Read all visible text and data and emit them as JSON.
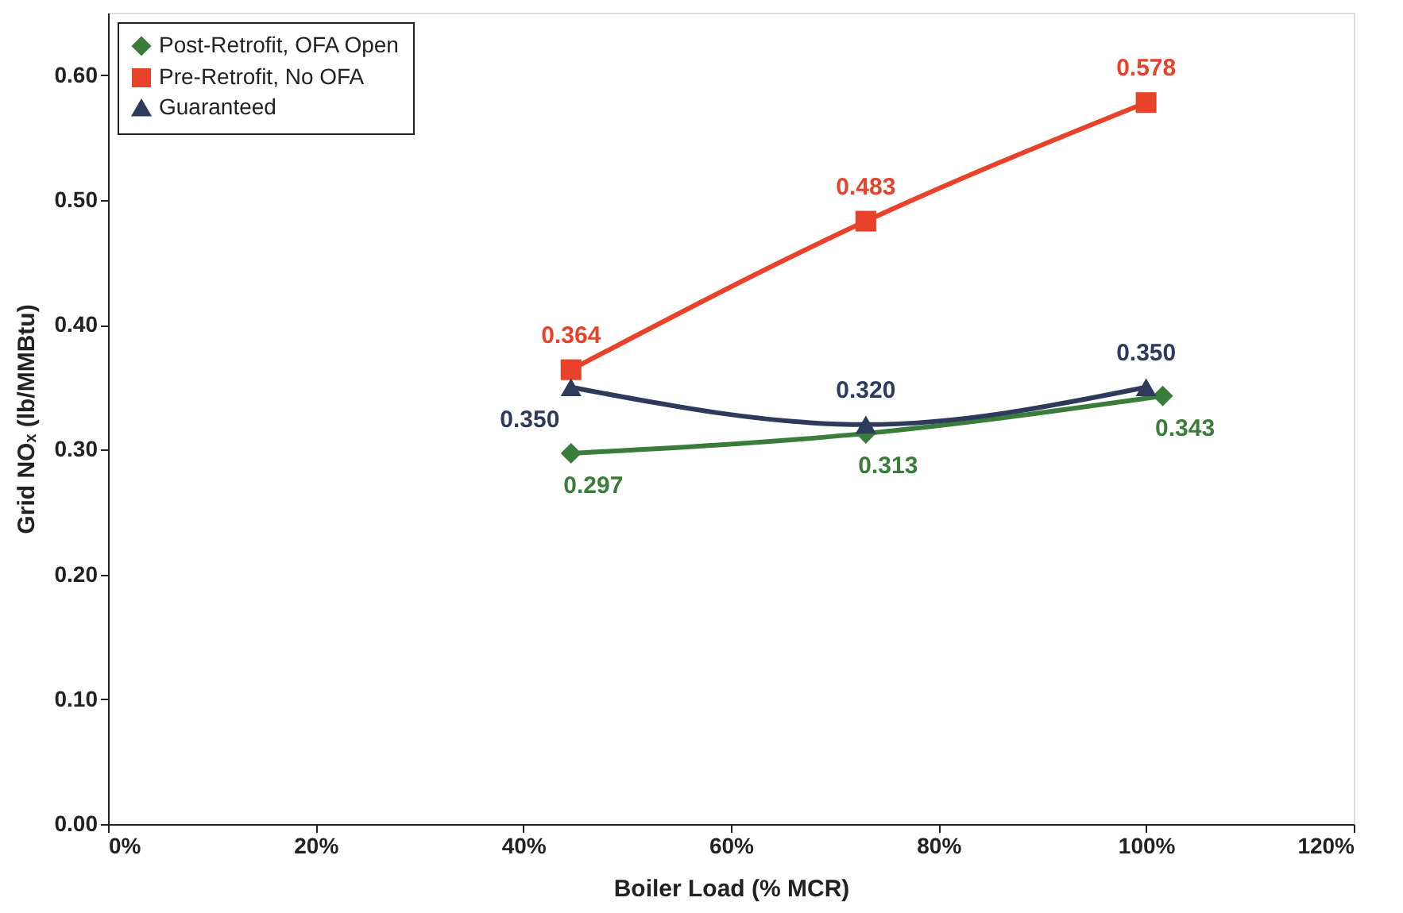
{
  "chart_data": {
    "type": "line",
    "xlabel": "Boiler Load (% MCR)",
    "ylabel": "Grid NOₓ (lb/MMBtu)",
    "xlim": [
      0,
      120
    ],
    "xticks": [
      {
        "value": 0,
        "label": "0%"
      },
      {
        "value": 20,
        "label": "20%"
      },
      {
        "value": 40,
        "label": "40%"
      },
      {
        "value": 60,
        "label": "60%"
      },
      {
        "value": 80,
        "label": "80%"
      },
      {
        "value": 100,
        "label": "100%"
      },
      {
        "value": 120,
        "label": "120%"
      }
    ],
    "ylim": [
      0,
      0.65
    ],
    "yticks": [
      {
        "value": 0,
        "label": "0.00"
      },
      {
        "value": 0.1,
        "label": "0.10"
      },
      {
        "value": 0.2,
        "label": "0.20"
      },
      {
        "value": 0.3,
        "label": "0.30"
      },
      {
        "value": 0.4,
        "label": "0.40"
      },
      {
        "value": 0.5,
        "label": "0.50"
      },
      {
        "value": 0.6,
        "label": "0.60"
      }
    ],
    "series": [
      {
        "name": "Post-Retrofit, OFA Open",
        "color": "#3a7d3a",
        "marker": "diamond",
        "x": [
          44.6,
          73,
          101.6
        ],
        "values": [
          0.297,
          0.313,
          0.343
        ],
        "value_labels": [
          "0.297",
          "0.313",
          "0.343"
        ]
      },
      {
        "name": "Pre-Retrofit, No OFA",
        "color": "#e8432a",
        "marker": "square",
        "x": [
          44.6,
          73,
          100
        ],
        "values": [
          0.364,
          0.483,
          0.578
        ],
        "value_labels": [
          "0.364",
          "0.483",
          "0.578"
        ]
      },
      {
        "name": "Guaranteed",
        "color": "#2d3a5c",
        "marker": "triangle",
        "x": [
          44.6,
          73,
          100
        ],
        "values": [
          0.35,
          0.32,
          0.35
        ],
        "value_labels": [
          "0.350",
          "0.320",
          "0.350"
        ]
      }
    ],
    "grid": false,
    "legend": "top left"
  }
}
